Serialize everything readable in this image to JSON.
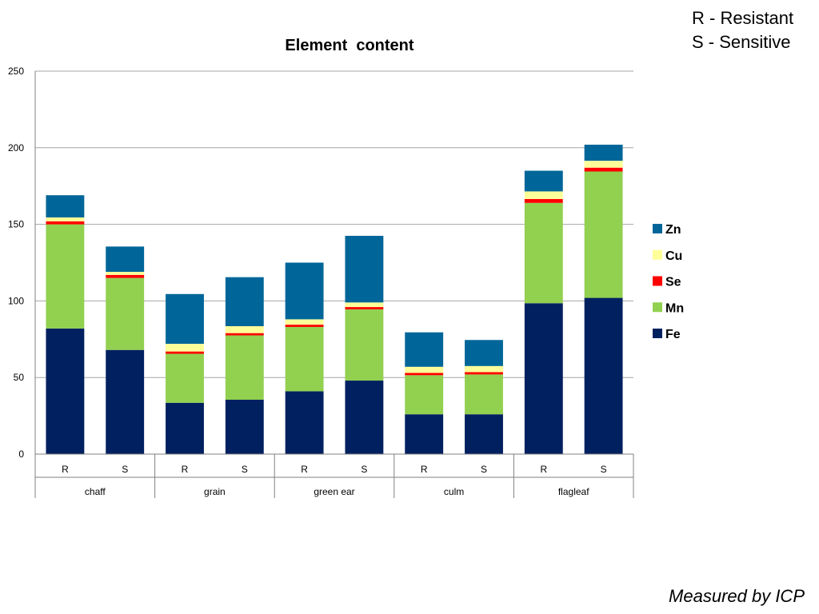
{
  "note": {
    "line1": "R - Resistant",
    "line2": "S - Sensitive"
  },
  "footnote": "Measured by ICP",
  "chart_data": {
    "type": "bar",
    "stacked": true,
    "title": "Element  content",
    "xlabel": "",
    "ylabel": "",
    "ylim": [
      0,
      250
    ],
    "yticks": [
      0,
      50,
      100,
      150,
      200,
      250
    ],
    "grid": true,
    "legend_position": "right",
    "groups": [
      {
        "label": "chaff",
        "categories": [
          "R",
          "S"
        ]
      },
      {
        "label": "grain",
        "categories": [
          "R",
          "S"
        ]
      },
      {
        "label": "green ear",
        "categories": [
          "R",
          "S"
        ]
      },
      {
        "label": "culm",
        "categories": [
          "R",
          "S"
        ]
      },
      {
        "label": "flagleaf",
        "categories": [
          "R",
          "S"
        ]
      }
    ],
    "series": [
      {
        "name": "Fe",
        "color": "#002060",
        "values": [
          82,
          68,
          33.5,
          35.5,
          41,
          48,
          26,
          26,
          98.5,
          102
        ]
      },
      {
        "name": "Mn",
        "color": "#92D050",
        "values": [
          68,
          47,
          32,
          42,
          42,
          46.5,
          25.5,
          26,
          65.5,
          82.5
        ]
      },
      {
        "name": "Se",
        "color": "#FF0000",
        "values": [
          2,
          2,
          1.5,
          1.5,
          1.5,
          1.5,
          1.5,
          1.5,
          2.5,
          2.5
        ]
      },
      {
        "name": "Cu",
        "color": "#FFFF99",
        "values": [
          2.5,
          2,
          5,
          4.5,
          3.5,
          3,
          4,
          4,
          5,
          4.5
        ]
      },
      {
        "name": "Zn",
        "color": "#006699",
        "values": [
          14.5,
          16.5,
          32.5,
          32,
          37,
          43.5,
          22.5,
          17,
          13.5,
          10.5
        ]
      }
    ]
  }
}
